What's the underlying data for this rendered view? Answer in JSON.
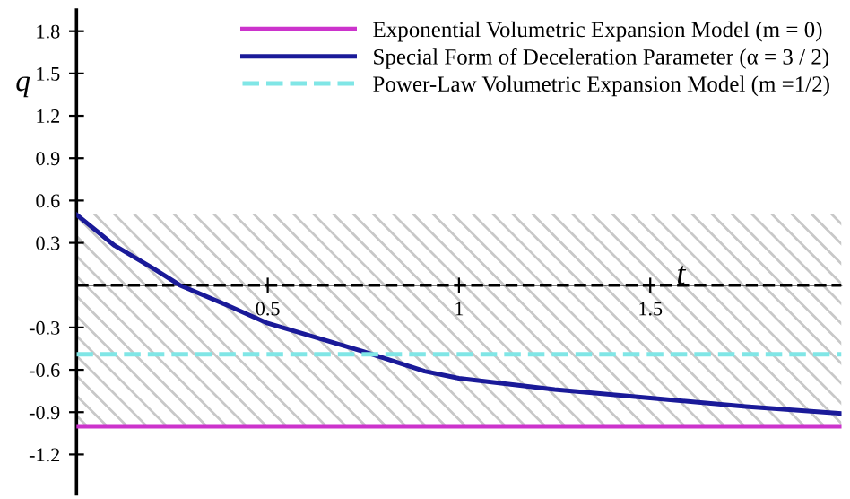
{
  "chart_data": {
    "type": "line",
    "xlabel": "t",
    "ylabel": "q",
    "xlim": [
      0,
      2.0
    ],
    "ylim": [
      -1.48,
      1.95
    ],
    "xticks": [
      0.5,
      1,
      1.5
    ],
    "yticks": [
      {
        "value": -1.2,
        "label": "-1.2"
      },
      {
        "value": -0.9,
        "label": "-0.9"
      },
      {
        "value": -0.6,
        "label": "-0.6"
      },
      {
        "value": -0.3,
        "label": "-0.3"
      },
      {
        "value": 0.3,
        "label": "0.3"
      },
      {
        "value": 0.6,
        "label": "0.6"
      },
      {
        "value": 0.9,
        "label": "0.9"
      },
      {
        "value": 1.2,
        "label": "1.2"
      },
      {
        "value": 1.5,
        "label": "1.5"
      },
      {
        "value": 1.8,
        "label": "1.8"
      }
    ],
    "series": [
      {
        "name": "Exponential Volumetric Expansion Model (m = 0)",
        "color": "#cc33cc",
        "x": [
          0,
          2.0
        ],
        "values": [
          -1,
          -1
        ],
        "line_style": "solid"
      },
      {
        "name": "Special Form of Deceleration Parameter (α = 3 / 2)",
        "color": "#1a1a99",
        "x": [
          0,
          0.1,
          0.2,
          0.27,
          0.4,
          0.5,
          0.75,
          0.91,
          1.0,
          1.25,
          1.5,
          1.75,
          2.0
        ],
        "values": [
          0.5,
          0.28,
          0.12,
          0,
          -0.15,
          -0.27,
          -0.47,
          -0.61,
          -0.66,
          -0.74,
          -0.8,
          -0.86,
          -0.91
        ],
        "line_style": "solid"
      },
      {
        "name": "Power-Law Volumetric Expansion Model (m =1/2)",
        "color": "#80e6e6",
        "x": [
          0,
          2.0
        ],
        "values": [
          -0.49,
          -0.49
        ],
        "line_style": "dashed"
      }
    ],
    "ref_lines": [
      {
        "axis": "y",
        "value": 0,
        "color": "#000000",
        "line_style": "dashed"
      }
    ],
    "bands": [
      {
        "axis": "y",
        "from": -1,
        "to": 0.5,
        "color": "#c8c8c8"
      }
    ],
    "grid": false,
    "legend": "top right"
  }
}
